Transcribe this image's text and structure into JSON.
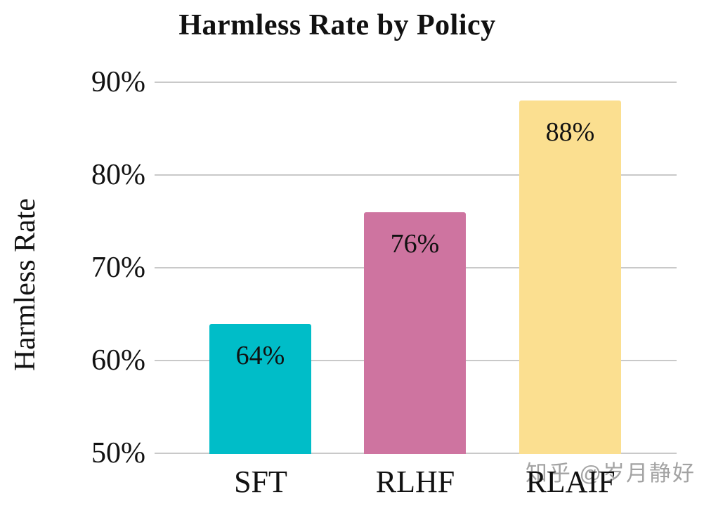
{
  "chart_data": {
    "type": "bar",
    "title": "Harmless Rate by Policy",
    "xlabel": "",
    "ylabel": "Harmless Rate",
    "categories": [
      "SFT",
      "RLHF",
      "RLAIF"
    ],
    "values": [
      64,
      76,
      88
    ],
    "value_labels": [
      "64%",
      "76%",
      "88%"
    ],
    "bar_colors": [
      "#00bdc8",
      "#ce74a0",
      "#fbdf90"
    ],
    "ylim": [
      50,
      90
    ],
    "ytick_step": 10,
    "ytick_labels": [
      "90%",
      "80%",
      "70%",
      "60%",
      "50%"
    ],
    "grid": true,
    "gridline_color": "#c9c9c9",
    "legend_position": "none"
  },
  "watermark": {
    "text": "知乎 @岁月静好",
    "color": "#a3a3a3"
  }
}
